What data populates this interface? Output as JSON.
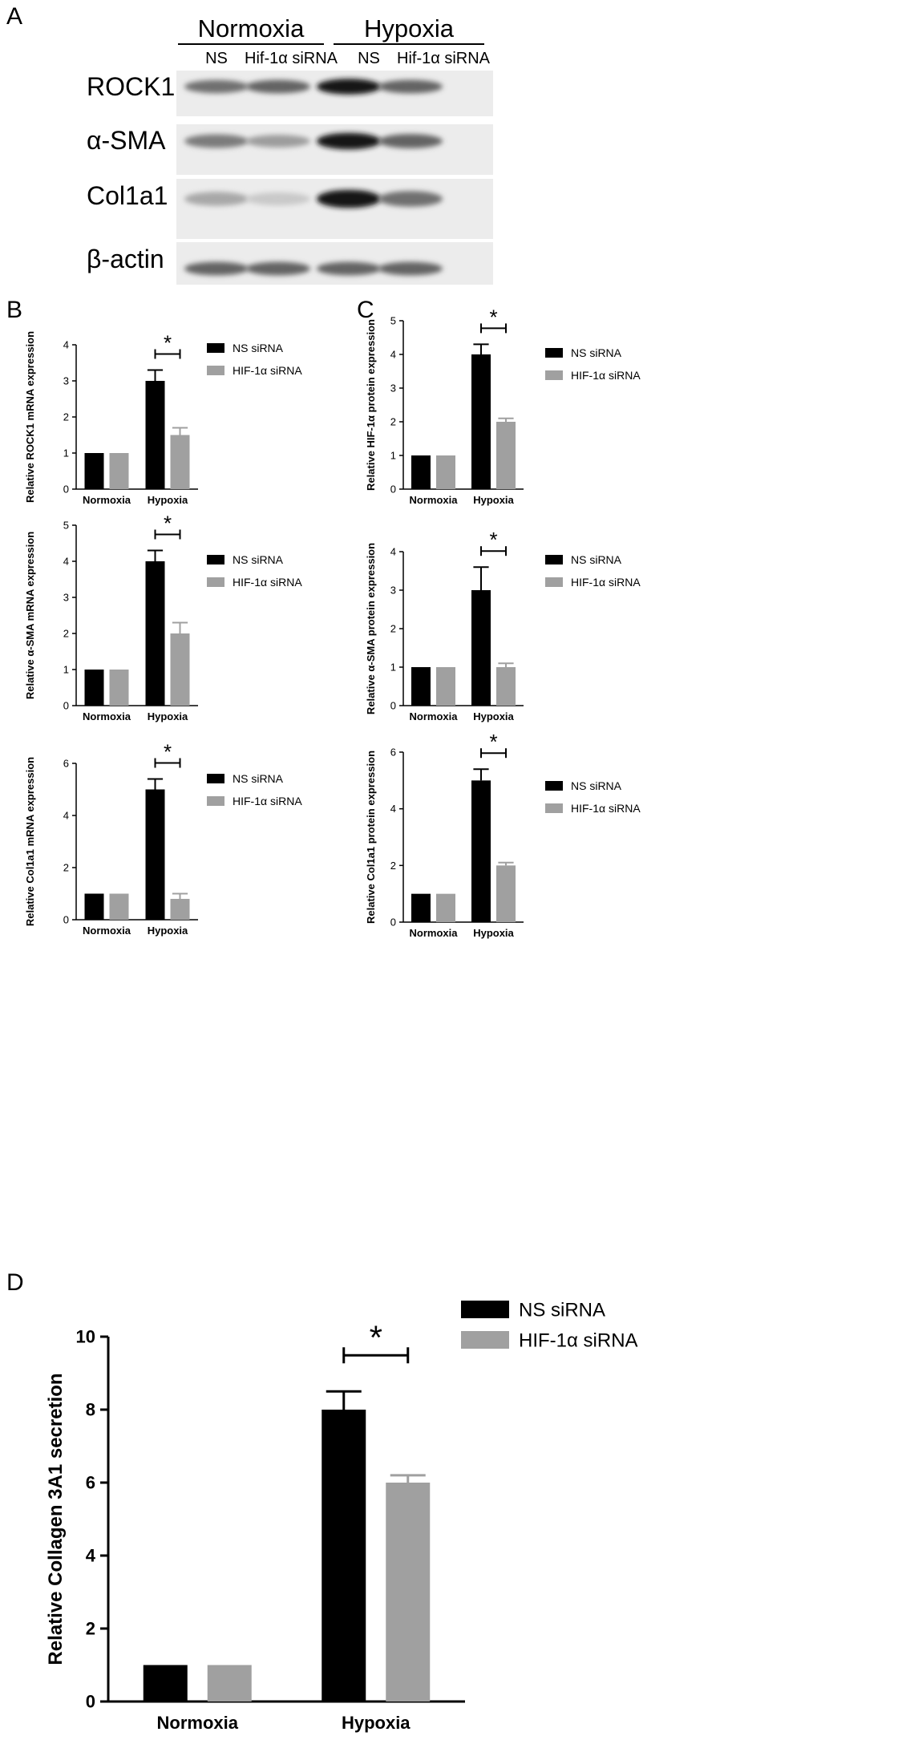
{
  "panels": {
    "a": "A",
    "b": "B",
    "c": "C",
    "d": "D"
  },
  "western_blot": {
    "conditions": [
      "Normoxia",
      "Hypoxia"
    ],
    "lanes": [
      "NS",
      "Hif-1α siRNA",
      "NS",
      "Hif-1α siRNA"
    ],
    "proteins": [
      {
        "name": "ROCK1",
        "band_intensity": [
          0.55,
          0.6,
          0.95,
          0.6
        ]
      },
      {
        "name": "α-SMA",
        "band_intensity": [
          0.5,
          0.35,
          0.95,
          0.6
        ]
      },
      {
        "name": "Col1a1",
        "band_intensity": [
          0.3,
          0.15,
          0.95,
          0.55
        ]
      },
      {
        "name": "β-actin",
        "band_intensity": [
          0.6,
          0.6,
          0.6,
          0.6
        ]
      }
    ]
  },
  "colors": {
    "ns": "#000000",
    "hif": "#a0a0a0"
  },
  "chart_data": [
    {
      "panel": "B",
      "type": "bar",
      "categories": [
        "Normoxia",
        "Hypoxia"
      ],
      "series": [
        {
          "name": "NS siRNA",
          "values": [
            1,
            3
          ],
          "errors": [
            0,
            0.3
          ]
        },
        {
          "name": "HIF-1α siRNA",
          "values": [
            1,
            1.5
          ],
          "errors": [
            0,
            0.2
          ]
        }
      ],
      "ylabel": "Relative ROCK1 mRNA expression",
      "ylim": [
        0,
        4
      ],
      "yticks": [
        0,
        1,
        2,
        3,
        4
      ],
      "annotation": "*",
      "legend": "right"
    },
    {
      "panel": "B",
      "type": "bar",
      "categories": [
        "Normoxia",
        "Hypoxia"
      ],
      "series": [
        {
          "name": "NS siRNA",
          "values": [
            1,
            4
          ],
          "errors": [
            0,
            0.3
          ]
        },
        {
          "name": "HIF-1α siRNA",
          "values": [
            1,
            2
          ],
          "errors": [
            0,
            0.3
          ]
        }
      ],
      "ylabel": "Relative α-SMA mRNA expression",
      "ylim": [
        0,
        5
      ],
      "yticks": [
        0,
        1,
        2,
        3,
        4,
        5
      ],
      "annotation": "*",
      "legend": "right"
    },
    {
      "panel": "B",
      "type": "bar",
      "categories": [
        "Normoxia",
        "Hypoxia"
      ],
      "series": [
        {
          "name": "NS siRNA",
          "values": [
            1,
            5
          ],
          "errors": [
            0,
            0.4
          ]
        },
        {
          "name": "HIF-1α siRNA",
          "values": [
            1,
            0.8
          ],
          "errors": [
            0,
            0.2
          ]
        }
      ],
      "ylabel": "Relative Col1a1 mRNA expression",
      "ylim": [
        0,
        6
      ],
      "yticks": [
        0,
        2,
        4,
        6
      ],
      "annotation": "*",
      "legend": "right"
    },
    {
      "panel": "C",
      "type": "bar",
      "categories": [
        "Normoxia",
        "Hypoxia"
      ],
      "series": [
        {
          "name": "NS siRNA",
          "values": [
            1,
            4
          ],
          "errors": [
            0,
            0.3
          ]
        },
        {
          "name": "HIF-1α siRNA",
          "values": [
            1,
            2
          ],
          "errors": [
            0,
            0.1
          ]
        }
      ],
      "ylabel": "Relative HIF-1α protein expression",
      "ylim": [
        0,
        5
      ],
      "yticks": [
        0,
        1,
        2,
        3,
        4,
        5
      ],
      "annotation": "*",
      "legend": "right"
    },
    {
      "panel": "C",
      "type": "bar",
      "categories": [
        "Normoxia",
        "Hypoxia"
      ],
      "series": [
        {
          "name": "NS siRNA",
          "values": [
            1,
            3
          ],
          "errors": [
            0,
            0.6
          ]
        },
        {
          "name": "HIF-1α siRNA",
          "values": [
            1,
            1
          ],
          "errors": [
            0,
            0.1
          ]
        }
      ],
      "ylabel": "Relative α-SMA protein expression",
      "ylim": [
        0,
        4
      ],
      "yticks": [
        0,
        1,
        2,
        3,
        4
      ],
      "annotation": "*",
      "legend": "right"
    },
    {
      "panel": "C",
      "type": "bar",
      "categories": [
        "Normoxia",
        "Hypoxia"
      ],
      "series": [
        {
          "name": "NS siRNA",
          "values": [
            1,
            5
          ],
          "errors": [
            0,
            0.4
          ]
        },
        {
          "name": "HIF-1α siRNA",
          "values": [
            1,
            2
          ],
          "errors": [
            0,
            0.1
          ]
        }
      ],
      "ylabel": "Relative Col1a1 protein expression",
      "ylim": [
        0,
        6
      ],
      "yticks": [
        0,
        2,
        4,
        6
      ],
      "annotation": "*",
      "legend": "right"
    },
    {
      "panel": "D",
      "type": "bar",
      "categories": [
        "Normoxia",
        "Hypoxia"
      ],
      "series": [
        {
          "name": "NS siRNA",
          "values": [
            1,
            8
          ],
          "errors": [
            0,
            0.5
          ]
        },
        {
          "name": "HIF-1α siRNA",
          "values": [
            1,
            6
          ],
          "errors": [
            0,
            0.2
          ]
        }
      ],
      "ylabel": "Relative Collagen 3A1 secretion",
      "ylim": [
        0,
        10
      ],
      "yticks": [
        0,
        2,
        4,
        6,
        8,
        10
      ],
      "annotation": "*",
      "legend": "right"
    }
  ]
}
